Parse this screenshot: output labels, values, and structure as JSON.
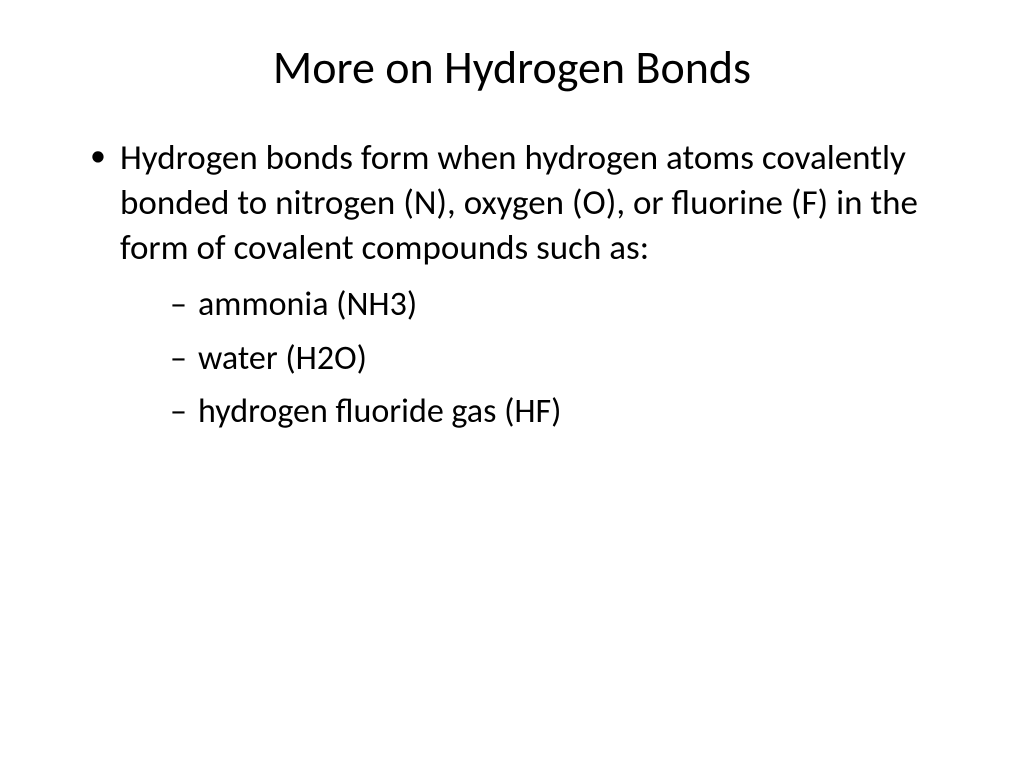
{
  "slide": {
    "title": "More on Hydrogen Bonds",
    "title_fontsize": 46,
    "title_color": "#000000",
    "background_color": "#ffffff",
    "body_fontsize": 35,
    "sub_fontsize": 34,
    "text_color": "#000000",
    "main_bullet": "Hydrogen bonds form when hydrogen atoms covalently bonded to nitrogen (N), oxygen (O), or fluorine (F) in the form of covalent compounds such as:",
    "sub_bullets": [
      "ammonia (NH3)",
      "water (H2O)",
      "hydrogen fluoride gas (HF)"
    ]
  }
}
